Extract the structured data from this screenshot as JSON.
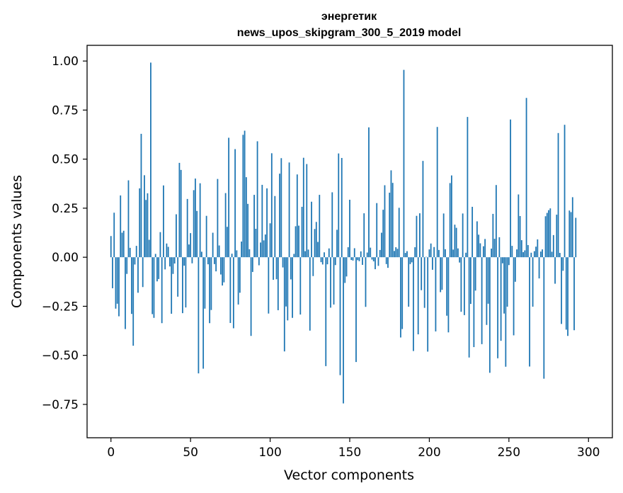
{
  "chart_data": {
    "type": "bar",
    "title": "энергетик",
    "subtitle": "news_upos_skipgram_300_5_2019 model",
    "xlabel": "Vector components",
    "ylabel": "Components values",
    "xlim": [
      -15,
      315
    ],
    "ylim": [
      -0.92,
      1.08
    ],
    "xticks": [
      0,
      50,
      100,
      150,
      200,
      250,
      300
    ],
    "xtick_labels": [
      "0",
      "50",
      "100",
      "150",
      "200",
      "250",
      "300"
    ],
    "yticks": [
      -0.75,
      -0.5,
      -0.25,
      0.0,
      0.25,
      0.5,
      0.75,
      1.0
    ],
    "ytick_labels": [
      "−0.75",
      "−0.50",
      "−0.25",
      "0.00",
      "0.25",
      "0.50",
      "0.75",
      "1.00"
    ],
    "color": "#1f77b4",
    "grid": false,
    "x": "0..299 (component index)",
    "values": [
      0.108,
      -0.158,
      0.227,
      -0.262,
      -0.237,
      -0.301,
      0.315,
      0.125,
      0.135,
      -0.366,
      -0.085,
      0.392,
      0.048,
      -0.289,
      -0.451,
      -0.037,
      0.058,
      -0.181,
      0.351,
      0.629,
      -0.152,
      0.418,
      0.292,
      0.326,
      0.089,
      0.992,
      -0.29,
      -0.309,
      0.017,
      -0.123,
      -0.111,
      0.128,
      -0.336,
      0.366,
      -0.062,
      0.07,
      0.053,
      -0.047,
      -0.288,
      -0.085,
      -0.032,
      0.219,
      -0.201,
      0.481,
      0.445,
      -0.285,
      -0.043,
      -0.256,
      0.297,
      0.065,
      0.123,
      -0.031,
      0.342,
      0.401,
      0.236,
      -0.592,
      0.377,
      0.028,
      -0.568,
      -0.262,
      0.211,
      -0.036,
      -0.336,
      -0.269,
      0.125,
      -0.035,
      -0.072,
      0.399,
      0.06,
      -0.088,
      -0.144,
      -0.128,
      0.327,
      0.155,
      0.609,
      -0.335,
      0.018,
      -0.362,
      0.551,
      0.035,
      -0.241,
      -0.181,
      0.08,
      0.624,
      0.645,
      0.408,
      0.272,
      0.041,
      -0.401,
      -0.075,
      0.318,
      0.145,
      0.591,
      -0.041,
      0.075,
      0.369,
      0.086,
      0.116,
      0.351,
      -0.287,
      0.173,
      0.53,
      -0.115,
      0.312,
      -0.112,
      -0.27,
      0.426,
      0.505,
      -0.052,
      -0.48,
      -0.251,
      -0.322,
      0.483,
      -0.113,
      -0.309,
      0.017,
      0.158,
      0.422,
      0.161,
      -0.292,
      0.257,
      0.507,
      0.031,
      0.475,
      0.039,
      -0.374,
      0.283,
      -0.096,
      0.144,
      0.18,
      0.078,
      0.318,
      -0.025,
      -0.037,
      0.025,
      -0.555,
      -0.036,
      0.045,
      -0.257,
      0.331,
      -0.241,
      -0.04,
      0.14,
      0.529,
      -0.601,
      0.506,
      -0.745,
      -0.131,
      -0.098,
      0.051,
      0.293,
      -0.014,
      -0.017,
      0.046,
      -0.534,
      -0.015,
      -0.02,
      0.03,
      -0.039,
      0.224,
      -0.253,
      0.024,
      0.662,
      0.049,
      -0.012,
      -0.021,
      -0.061,
      0.276,
      -0.044,
      0.037,
      0.125,
      0.242,
      0.367,
      -0.035,
      -0.054,
      0.329,
      0.443,
      0.379,
      0.032,
      0.051,
      0.043,
      0.252,
      -0.409,
      -0.366,
      0.955,
      0.022,
      0.031,
      -0.252,
      -0.035,
      -0.026,
      -0.478,
      0.051,
      0.211,
      -0.393,
      0.224,
      -0.168,
      0.491,
      -0.258,
      0.002,
      -0.481,
      0.04,
      0.07,
      -0.064,
      0.052,
      -0.378,
      0.664,
      0.037,
      -0.178,
      -0.166,
      0.223,
      0.041,
      -0.298,
      -0.383,
      0.378,
      0.417,
      0.039,
      0.166,
      0.15,
      0.045,
      -0.027,
      -0.278,
      0.223,
      -0.295,
      0.023,
      0.715,
      -0.511,
      -0.238,
      0.257,
      -0.458,
      -0.17,
      0.183,
      0.115,
      0.071,
      -0.443,
      0.056,
      0.093,
      -0.345,
      -0.237,
      -0.589,
      0.044,
      0.221,
      0.094,
      0.368,
      -0.515,
      0.102,
      -0.426,
      -0.031,
      -0.287,
      -0.558,
      -0.252,
      -0.04,
      0.702,
      0.058,
      -0.398,
      -0.125,
      0.04,
      0.32,
      0.21,
      0.087,
      0.026,
      0.035,
      0.812,
      0.062,
      -0.557,
      0.023,
      -0.252,
      0.031,
      0.054,
      0.091,
      -0.108,
      0.029,
      0.04,
      -0.619,
      0.209,
      0.226,
      0.24,
      0.249,
      0.028,
      0.113,
      -0.135,
      0.217,
      0.633,
      0.022,
      -0.34,
      -0.069,
      0.675,
      -0.369,
      -0.401,
      0.238,
      0.23,
      0.306,
      -0.372,
      0.201
    ]
  }
}
